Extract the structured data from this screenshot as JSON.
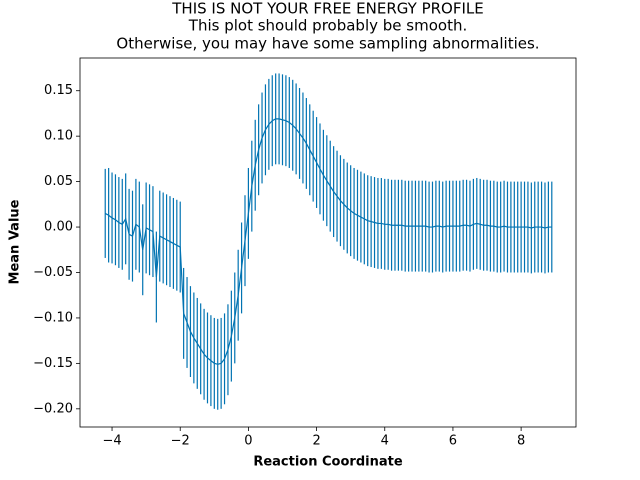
{
  "chart_data": {
    "type": "errorbar",
    "title": [
      "THIS IS NOT YOUR FREE ENERGY PROFILE",
      "This plot should probably be smooth.",
      "Otherwise, you may have some sampling abnormalities."
    ],
    "x_label": "Reaction Coordinate",
    "y_label": "Mean Value",
    "color": "#0173b2",
    "xlim": [
      -4.94,
      9.61
    ],
    "ylim": [
      -0.22,
      0.186
    ],
    "xticks": [
      {
        "value": -4,
        "label": "−4"
      },
      {
        "value": -2,
        "label": "−2"
      },
      0,
      2,
      4,
      6,
      8
    ],
    "yticks": [
      {
        "value": -0.2,
        "label": "−0.20"
      },
      {
        "value": -0.15,
        "label": "−0.15"
      },
      {
        "value": -0.1,
        "label": "−0.10"
      },
      {
        "value": -0.05,
        "label": "−0.05"
      },
      {
        "value": 0,
        "label": "0.00"
      },
      {
        "value": 0.05,
        "label": "0.05"
      },
      {
        "value": 0.1,
        "label": "0.10"
      },
      {
        "value": 0.15,
        "label": "0.15"
      }
    ],
    "x": [
      -4.2,
      -4.1,
      -4.0,
      -3.9,
      -3.8,
      -3.7,
      -3.6,
      -3.5,
      -3.4,
      -3.3,
      -3.2,
      -3.1,
      -3.0,
      -2.9,
      -2.8,
      -2.7,
      -2.6,
      -2.5,
      -2.4,
      -2.3,
      -2.2,
      -2.1,
      -2.0,
      -1.9,
      -1.8,
      -1.7,
      -1.6,
      -1.5,
      -1.4,
      -1.3,
      -1.2,
      -1.1,
      -1.0,
      -0.9,
      -0.8,
      -0.7,
      -0.6,
      -0.5,
      -0.4,
      -0.3,
      -0.2,
      -0.1,
      0.0,
      0.1,
      0.2,
      0.3,
      0.4,
      0.5,
      0.6,
      0.7,
      0.8,
      0.9,
      1.0,
      1.1,
      1.2,
      1.3,
      1.4,
      1.5,
      1.6,
      1.7,
      1.8,
      1.9,
      2.0,
      2.1,
      2.2,
      2.3,
      2.4,
      2.5,
      2.6,
      2.7,
      2.8,
      2.9,
      3.0,
      3.1,
      3.2,
      3.3,
      3.4,
      3.5,
      3.6,
      3.7,
      3.8,
      3.9,
      4.0,
      4.1,
      4.2,
      4.3,
      4.4,
      4.5,
      4.6,
      4.7,
      4.8,
      4.9,
      5.0,
      5.1,
      5.2,
      5.3,
      5.4,
      5.5,
      5.6,
      5.7,
      5.8,
      5.9,
      6.0,
      6.1,
      6.2,
      6.3,
      6.4,
      6.5,
      6.6,
      6.7,
      6.8,
      6.9,
      7.0,
      7.1,
      7.2,
      7.3,
      7.4,
      7.5,
      7.6,
      7.7,
      7.8,
      7.9,
      8.0,
      8.1,
      8.2,
      8.3,
      8.4,
      8.5,
      8.6,
      8.7,
      8.8,
      8.9
    ],
    "values": [
      0.015,
      0.013,
      0.01,
      0.008,
      0.005,
      0.003,
      0.009,
      -0.008,
      -0.01,
      0.003,
      0.0,
      -0.025,
      -0.001,
      -0.003,
      -0.005,
      -0.055,
      -0.01,
      -0.012,
      -0.014,
      -0.016,
      -0.018,
      -0.02,
      -0.022,
      -0.095,
      -0.105,
      -0.115,
      -0.122,
      -0.128,
      -0.134,
      -0.14,
      -0.144,
      -0.147,
      -0.15,
      -0.151,
      -0.15,
      -0.145,
      -0.135,
      -0.12,
      -0.1,
      -0.075,
      -0.045,
      -0.015,
      0.015,
      0.045,
      0.068,
      0.085,
      0.098,
      0.107,
      0.113,
      0.117,
      0.119,
      0.119,
      0.118,
      0.117,
      0.115,
      0.112,
      0.108,
      0.103,
      0.098,
      0.092,
      0.085,
      0.078,
      0.071,
      0.064,
      0.057,
      0.051,
      0.045,
      0.039,
      0.034,
      0.029,
      0.025,
      0.021,
      0.018,
      0.015,
      0.013,
      0.011,
      0.009,
      0.007,
      0.006,
      0.005,
      0.004,
      0.004,
      0.003,
      0.003,
      0.002,
      0.002,
      0.002,
      0.002,
      0.001,
      0.001,
      0.001,
      0.001,
      0.001,
      0.001,
      0.001,
      0.0,
      0.0,
      0.001,
      0.001,
      0.0,
      0.001,
      0.001,
      0.001,
      0.001,
      0.001,
      0.002,
      0.002,
      0.001,
      0.003,
      0.004,
      0.003,
      0.002,
      0.002,
      0.001,
      0.001,
      0.0,
      0.0,
      0.001,
      0.0,
      0.0,
      0.0,
      0.0,
      0.0,
      0.0,
      0.0,
      -0.001,
      0.0,
      0.0,
      0.0,
      -0.001,
      0.0,
      0.0
    ],
    "errors": [
      0.049,
      0.052,
      0.05,
      0.05,
      0.05,
      0.05,
      0.05,
      0.05,
      0.05,
      0.05,
      0.05,
      0.05,
      0.05,
      0.05,
      0.05,
      0.05,
      0.05,
      0.05,
      0.05,
      0.05,
      0.05,
      0.05,
      0.05,
      0.05,
      0.05,
      0.05,
      0.05,
      0.05,
      0.05,
      0.05,
      0.05,
      0.05,
      0.05,
      0.05,
      0.05,
      0.05,
      0.05,
      0.05,
      0.05,
      0.05,
      0.05,
      0.05,
      0.05,
      0.05,
      0.05,
      0.05,
      0.05,
      0.05,
      0.05,
      0.05,
      0.05,
      0.05,
      0.05,
      0.05,
      0.05,
      0.05,
      0.05,
      0.05,
      0.05,
      0.05,
      0.05,
      0.05,
      0.05,
      0.05,
      0.05,
      0.05,
      0.05,
      0.05,
      0.05,
      0.05,
      0.05,
      0.05,
      0.05,
      0.05,
      0.05,
      0.05,
      0.05,
      0.05,
      0.05,
      0.05,
      0.05,
      0.05,
      0.05,
      0.05,
      0.05,
      0.05,
      0.05,
      0.05,
      0.05,
      0.05,
      0.05,
      0.05,
      0.05,
      0.05,
      0.05,
      0.05,
      0.05,
      0.05,
      0.05,
      0.05,
      0.05,
      0.05,
      0.05,
      0.05,
      0.05,
      0.05,
      0.05,
      0.05,
      0.05,
      0.05,
      0.05,
      0.05,
      0.05,
      0.05,
      0.05,
      0.05,
      0.05,
      0.05,
      0.05,
      0.05,
      0.05,
      0.05,
      0.05,
      0.05,
      0.05,
      0.05,
      0.05,
      0.05,
      0.05,
      0.05,
      0.05,
      0.05
    ]
  }
}
